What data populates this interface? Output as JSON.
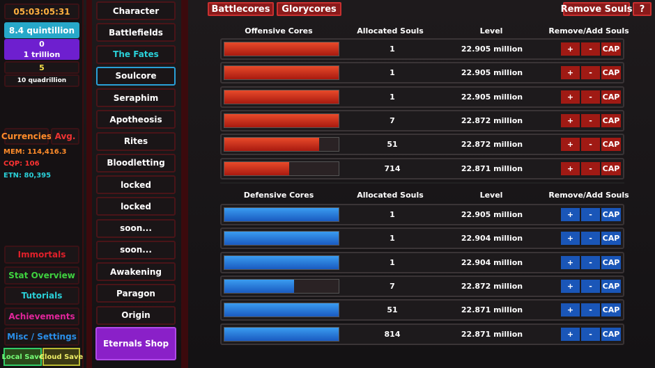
{
  "left": {
    "timer": "05:03:05:31",
    "resources": [
      "8.4 quintillion",
      "0",
      "1 trillion",
      "5",
      "10 quadrillion"
    ],
    "tabs": [
      "Currencies",
      "Avg."
    ],
    "stats": [
      "MEM: 114,416.3",
      "CQP: 106",
      "ETN: 80,395"
    ],
    "menu": [
      "Immortals",
      "Stat Overview",
      "Tutorials",
      "Achievements",
      "Misc / Settings"
    ],
    "saves": [
      "Local Save",
      "Cloud Save"
    ]
  },
  "nav": {
    "items": [
      "Character",
      "Battlefields",
      "The Fates",
      "Soulcore",
      "Seraphim",
      "Apotheosis",
      "Rites",
      "Bloodletting",
      "locked",
      "locked",
      "soon...",
      "soon...",
      "Awakening",
      "Paragon",
      "Origin"
    ],
    "shop": "Eternals Shop"
  },
  "top": {
    "tabs": [
      "Battlecores",
      "Glorycores"
    ],
    "remove": "Remove Souls",
    "help": "?"
  },
  "buttons": [
    "+",
    "-",
    "CAP"
  ],
  "offensive": {
    "headers": [
      "Offensive Cores",
      "Allocated Souls",
      "Level",
      "Remove/Add Souls"
    ],
    "rows": [
      {
        "souls": 1,
        "level": "22.905 million",
        "fill": 1
      },
      {
        "souls": 1,
        "level": "22.905 million",
        "fill": 1
      },
      {
        "souls": 1,
        "level": "22.905 million",
        "fill": 1
      },
      {
        "souls": 7,
        "level": "22.872 million",
        "fill": 1
      },
      {
        "souls": 51,
        "level": "22.872 million",
        "fill": 0.83
      },
      {
        "souls": 714,
        "level": "22.871 million",
        "fill": 0.57
      }
    ]
  },
  "defensive": {
    "headers": [
      "Defensive Cores",
      "Allocated Souls",
      "Level",
      "Remove/Add Souls"
    ],
    "rows": [
      {
        "souls": 1,
        "level": "22.905 million",
        "fill": 1
      },
      {
        "souls": 1,
        "level": "22.904 million",
        "fill": 1
      },
      {
        "souls": 1,
        "level": "22.904 million",
        "fill": 1
      },
      {
        "souls": 7,
        "level": "22.872 million",
        "fill": 0.61
      },
      {
        "souls": 51,
        "level": "22.871 million",
        "fill": 1
      },
      {
        "souls": 814,
        "level": "22.871 million",
        "fill": 1
      }
    ]
  }
}
